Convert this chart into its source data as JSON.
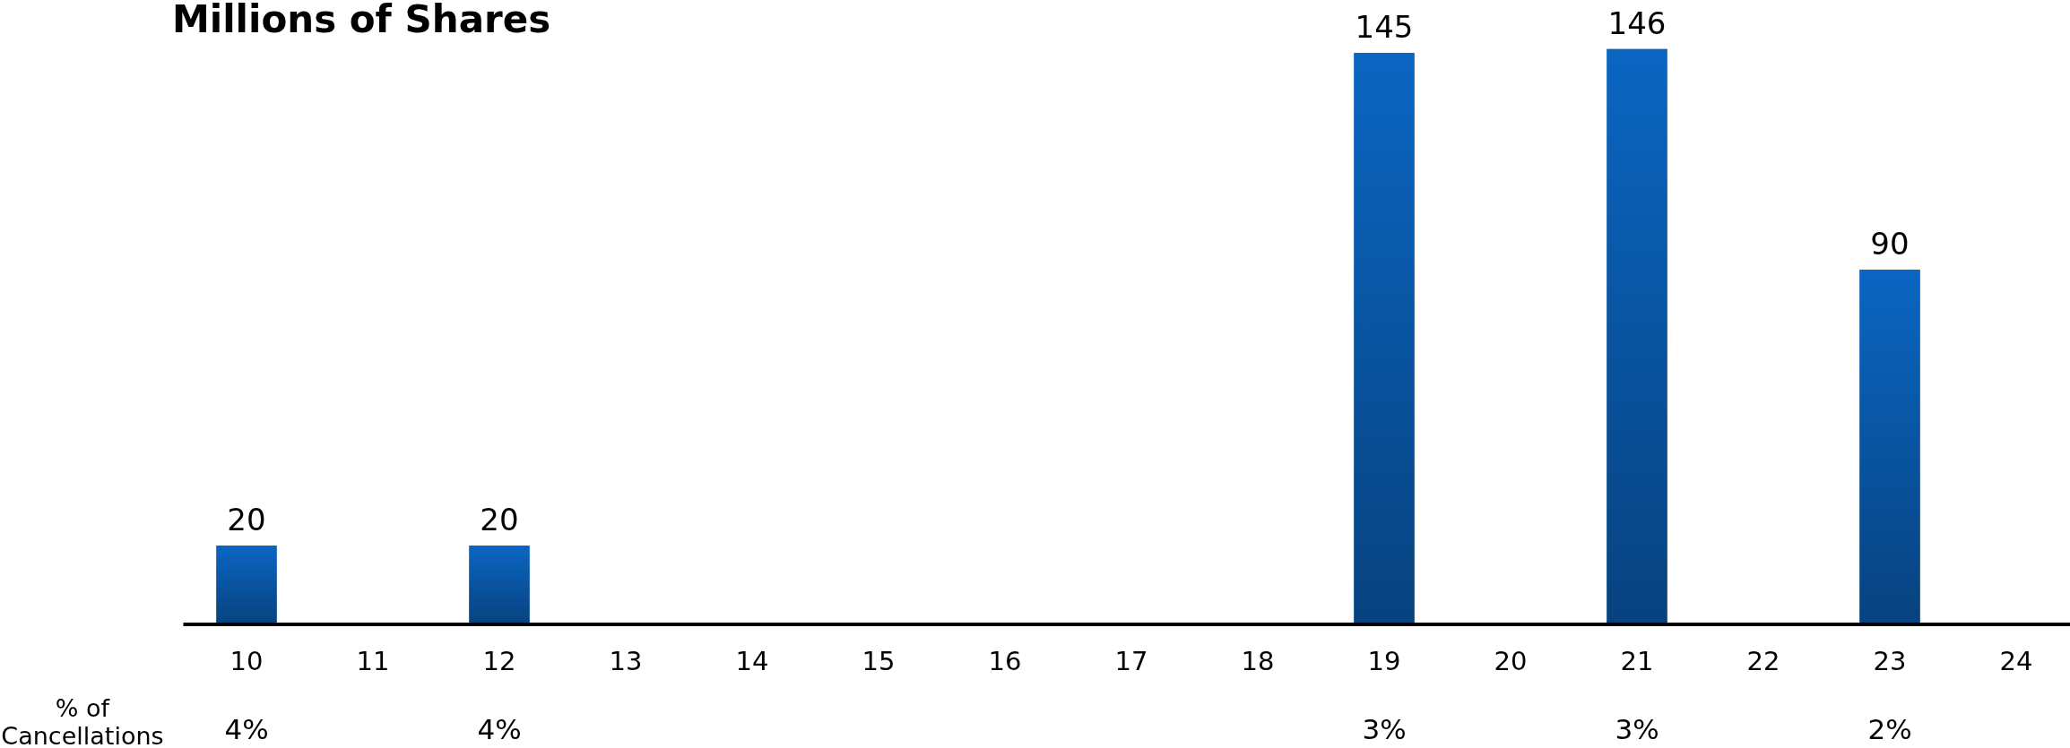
{
  "chart_data": {
    "type": "bar",
    "title": "Millions of Shares",
    "categories": [
      "10",
      "11",
      "12",
      "13",
      "14",
      "15",
      "16",
      "17",
      "18",
      "19",
      "20",
      "21",
      "22",
      "23",
      "24"
    ],
    "values": [
      20,
      null,
      20,
      null,
      null,
      null,
      null,
      null,
      null,
      145,
      null,
      146,
      null,
      90,
      null
    ],
    "color": "#09529d",
    "data_labels": true,
    "annotations": [
      "% of Cancellations",
      "4%",
      "4%",
      "3%",
      "3%",
      "2%"
    ]
  }
}
